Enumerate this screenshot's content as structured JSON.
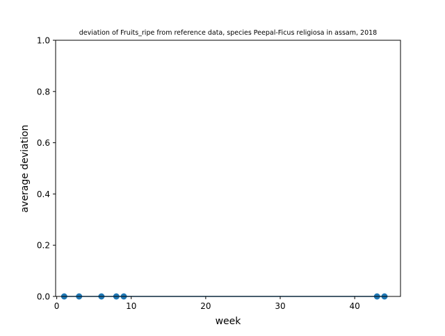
{
  "chart_data": {
    "type": "scatter",
    "title": "deviation of Fruits_ripe from reference data, species Peepal-Ficus religiosa in assam, 2018",
    "xlabel": "week",
    "ylabel": "average deviation",
    "xlim": [
      -0.15,
      46.15
    ],
    "ylim": [
      0,
      1.0
    ],
    "xticks": [
      {
        "value": 0,
        "label": "0"
      },
      {
        "value": 10,
        "label": "10"
      },
      {
        "value": 20,
        "label": "20"
      },
      {
        "value": 30,
        "label": "30"
      },
      {
        "value": 40,
        "label": "40"
      }
    ],
    "yticks": [
      {
        "value": 0.0,
        "label": "0.0"
      },
      {
        "value": 0.2,
        "label": "0.2"
      },
      {
        "value": 0.4,
        "label": "0.4"
      },
      {
        "value": 0.6,
        "label": "0.6"
      },
      {
        "value": 0.8,
        "label": "0.8"
      },
      {
        "value": 1.0,
        "label": "1.0"
      }
    ],
    "series": [
      {
        "color": "#1f77b4",
        "x": [
          1,
          3,
          6,
          8,
          9,
          43,
          44
        ],
        "y": [
          0,
          0,
          0,
          0,
          0,
          0,
          0
        ]
      }
    ],
    "line": {
      "color": "#1f77b4",
      "x": [
        1,
        44
      ],
      "y": [
        0,
        0
      ]
    },
    "grid": false,
    "legend": "none"
  }
}
